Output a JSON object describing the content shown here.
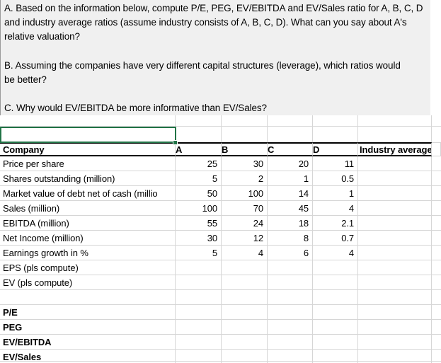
{
  "notes": {
    "lines": [
      "A. Based on the information below, compute P/E, PEG, EV/EBITDA and EV/Sales ratio for A, B, C, D",
      "and industry average ratios (assume industry consists of A, B, C, D). What can you say about A's",
      "relative valuation?",
      "",
      "B. Assuming the companies have very different capital structures (leverage), which ratios would",
      "be better?",
      "",
      "C. Why would EV/EBITDA be more informative than EV/Sales?"
    ]
  },
  "table": {
    "columns": [
      "Company",
      "A",
      "B",
      "C",
      "D",
      "Industry average"
    ],
    "rows": [
      {
        "label": "Price per share",
        "values": [
          "25",
          "30",
          "20",
          "11",
          ""
        ],
        "bold": false
      },
      {
        "label": "Shares outstanding (million)",
        "values": [
          "5",
          "2",
          "1",
          "0.5",
          ""
        ],
        "bold": false
      },
      {
        "label": "Market value of debt net of cash (millio",
        "values": [
          "50",
          "100",
          "14",
          "1",
          ""
        ],
        "bold": false
      },
      {
        "label": "Sales (million)",
        "values": [
          "100",
          "70",
          "45",
          "4",
          ""
        ],
        "bold": false
      },
      {
        "label": "EBITDA (million)",
        "values": [
          "55",
          "24",
          "18",
          "2.1",
          ""
        ],
        "bold": false
      },
      {
        "label": "Net Income (million)",
        "values": [
          "30",
          "12",
          "8",
          "0.7",
          ""
        ],
        "bold": false
      },
      {
        "label": "Earnings growth in %",
        "values": [
          "5",
          "4",
          "6",
          "4",
          ""
        ],
        "bold": false
      },
      {
        "label": "EPS (pls compute)",
        "values": [
          "",
          "",
          "",
          "",
          ""
        ],
        "bold": false
      },
      {
        "label": "EV (pls compute)",
        "values": [
          "",
          "",
          "",
          "",
          ""
        ],
        "bold": false
      },
      {
        "label": "",
        "values": [
          "",
          "",
          "",
          "",
          ""
        ],
        "bold": false
      },
      {
        "label": "P/E",
        "values": [
          "",
          "",
          "",
          "",
          ""
        ],
        "bold": true
      },
      {
        "label": "PEG",
        "values": [
          "",
          "",
          "",
          "",
          ""
        ],
        "bold": true
      },
      {
        "label": "EV/EBITDA",
        "values": [
          "",
          "",
          "",
          "",
          ""
        ],
        "bold": true
      },
      {
        "label": "EV/Sales",
        "values": [
          "",
          "",
          "",
          "",
          ""
        ],
        "bold": true
      }
    ]
  },
  "selection": {
    "value": ""
  },
  "colors": {
    "selection_green": "#217346",
    "gridline": "#d6d6d6",
    "notes_background": "#f0f0f0",
    "header_border": "#000000"
  }
}
